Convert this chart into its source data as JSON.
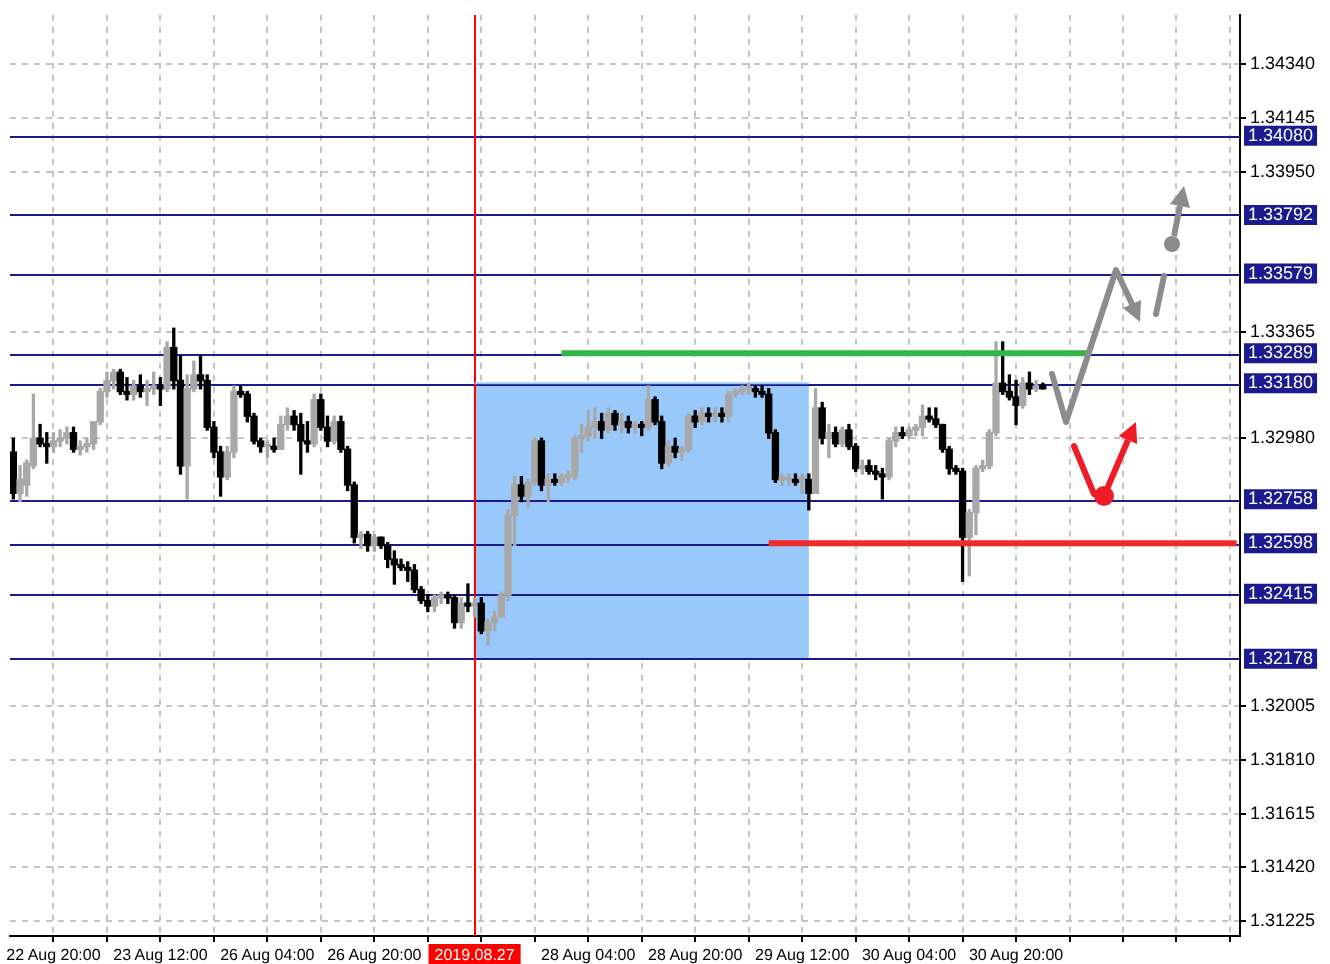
{
  "chart_data": {
    "type": "candlestick",
    "categories": [
      null,
      null,
      null,
      null,
      null,
      null,
      "22 Aug 20:00",
      null,
      null,
      null,
      null,
      null,
      null,
      null,
      null,
      null,
      null,
      null,
      null,
      null,
      null,
      null,
      "23 Aug 12:00",
      null,
      null,
      null,
      null,
      null,
      null,
      null,
      null,
      null,
      null,
      null,
      null,
      null,
      null,
      null,
      "26 Aug 04:00",
      null,
      null,
      null,
      null,
      null,
      null,
      null,
      null,
      null,
      null,
      null,
      null,
      null,
      null,
      null,
      "26 Aug 20:00",
      null,
      null,
      null,
      null,
      null,
      null,
      null,
      null,
      null,
      null,
      null,
      null,
      null,
      null,
      "2019.08.27",
      null,
      null,
      null,
      null,
      null,
      null,
      null,
      null,
      null,
      null,
      null,
      null,
      null,
      null,
      null,
      null,
      "28 Aug 04:00",
      null,
      null,
      null,
      null,
      null,
      null,
      null,
      null,
      null,
      null,
      null,
      null,
      null,
      null,
      null,
      "28 Aug 20:00",
      null,
      null,
      null,
      null,
      null,
      null,
      null,
      null,
      null,
      null,
      null,
      null,
      null,
      null,
      null,
      "29 Aug 12:00",
      null,
      null,
      null,
      null,
      null,
      null,
      null,
      null,
      null,
      null,
      null,
      null,
      null,
      null,
      null,
      "30 Aug 04:00",
      null,
      null,
      null,
      null,
      null,
      null,
      null,
      null,
      null,
      null,
      null,
      null,
      null,
      null,
      null,
      "30 Aug 20:00",
      null,
      null,
      null,
      null,
      null,
      null,
      null,
      null,
      null,
      null,
      null,
      null,
      null,
      null,
      null,
      null,
      null,
      null,
      null,
      null,
      null,
      null,
      null,
      null,
      null,
      null,
      null,
      null,
      null,
      null,
      null,
      null,
      null
    ],
    "ohlc": [
      [
        1.3293,
        1.3298,
        1.3276,
        1.3278
      ],
      [
        1.3278,
        1.3288,
        1.3275,
        1.3283
      ],
      [
        1.3281,
        1.329,
        1.3277,
        1.3289
      ],
      [
        1.3288,
        1.3314,
        1.3287,
        1.3298
      ],
      [
        1.3298,
        1.3303,
        1.3295,
        1.3296
      ],
      [
        1.3296,
        1.33,
        1.3289,
        1.3295
      ],
      [
        1.3295,
        1.33,
        1.3293,
        1.3297
      ],
      [
        1.3297,
        1.3301,
        1.3295,
        1.3298
      ],
      [
        1.3298,
        1.3302,
        1.3296,
        1.33
      ],
      [
        1.33,
        1.3302,
        1.3293,
        1.3294
      ],
      [
        1.3294,
        1.3297,
        1.3292,
        1.3295
      ],
      [
        1.3295,
        1.3298,
        1.3293,
        1.3296
      ],
      [
        1.3296,
        1.3304,
        1.3294,
        1.3304
      ],
      [
        1.3304,
        1.3316,
        1.3303,
        1.3315
      ],
      [
        1.3315,
        1.3322,
        1.3313,
        1.3319
      ],
      [
        1.3319,
        1.3323,
        1.3316,
        1.3322
      ],
      [
        1.3322,
        1.3323,
        1.3314,
        1.3315
      ],
      [
        1.3315,
        1.332,
        1.3312,
        1.3314
      ],
      [
        1.3314,
        1.3319,
        1.3312,
        1.3317
      ],
      [
        1.3317,
        1.3321,
        1.3313,
        1.3315
      ],
      [
        1.3315,
        1.3319,
        1.331,
        1.3316
      ],
      [
        1.3316,
        1.3322,
        1.3314,
        1.3317
      ],
      [
        1.3317,
        1.332,
        1.331,
        1.3316
      ],
      [
        1.3316,
        1.3333,
        1.3315,
        1.3331
      ],
      [
        1.3331,
        1.3338,
        1.3316,
        1.3319
      ],
      [
        1.3319,
        1.3328,
        1.3285,
        1.3288
      ],
      [
        1.3288,
        1.3321,
        1.3276,
        1.3316
      ],
      [
        1.3316,
        1.3326,
        1.3315,
        1.3321
      ],
      [
        1.3321,
        1.3328,
        1.3316,
        1.3319
      ],
      [
        1.3319,
        1.3321,
        1.3301,
        1.3302
      ],
      [
        1.3302,
        1.3304,
        1.3291,
        1.3293
      ],
      [
        1.3293,
        1.3295,
        1.3277,
        1.3284
      ],
      [
        1.3284,
        1.3295,
        1.3283,
        1.3293
      ],
      [
        1.3293,
        1.3317,
        1.3291,
        1.3315
      ],
      [
        1.3315,
        1.3317,
        1.3313,
        1.3314
      ],
      [
        1.3314,
        1.3315,
        1.3304,
        1.3306
      ],
      [
        1.3306,
        1.3307,
        1.3296,
        1.3297
      ],
      [
        1.3297,
        1.3298,
        1.3293,
        1.3295
      ],
      [
        1.3295,
        1.3297,
        1.3291,
        1.3295
      ],
      [
        1.3295,
        1.3298,
        1.3293,
        1.3294
      ],
      [
        1.3294,
        1.3306,
        1.3294,
        1.3303
      ],
      [
        1.3303,
        1.3309,
        1.3301,
        1.3306
      ],
      [
        1.3306,
        1.3308,
        1.3301,
        1.3303
      ],
      [
        1.3303,
        1.3307,
        1.3285,
        1.3297
      ],
      [
        1.3297,
        1.3304,
        1.3293,
        1.3296
      ],
      [
        1.3296,
        1.3314,
        1.3295,
        1.3312
      ],
      [
        1.3312,
        1.3314,
        1.3301,
        1.3302
      ],
      [
        1.3302,
        1.3306,
        1.3295,
        1.3297
      ],
      [
        1.3297,
        1.3306,
        1.3296,
        1.3304
      ],
      [
        1.3304,
        1.3306,
        1.3293,
        1.3294
      ],
      [
        1.3294,
        1.3295,
        1.3279,
        1.3281
      ],
      [
        1.3281,
        1.3282,
        1.326,
        1.3262
      ],
      [
        1.3262,
        1.3264,
        1.3258,
        1.3263
      ],
      [
        1.3263,
        1.3264,
        1.3257,
        1.3259
      ],
      [
        1.3259,
        1.3263,
        1.3257,
        1.3262
      ],
      [
        1.3262,
        1.3262,
        1.3258,
        1.3259
      ],
      [
        1.3259,
        1.326,
        1.3251,
        1.3254
      ],
      [
        1.3254,
        1.3257,
        1.3245,
        1.3252
      ],
      [
        1.3252,
        1.3254,
        1.325,
        1.3251
      ],
      [
        1.3251,
        1.3253,
        1.3246,
        1.325
      ],
      [
        1.325,
        1.3252,
        1.3242,
        1.3243
      ],
      [
        1.3243,
        1.3244,
        1.3238,
        1.3239
      ],
      [
        1.3239,
        1.3241,
        1.3235,
        1.3237
      ],
      [
        1.3237,
        1.3241,
        1.3235,
        1.324
      ],
      [
        1.324,
        1.3242,
        1.3238,
        1.3241
      ],
      [
        1.3241,
        1.3242,
        1.3238,
        1.324
      ],
      [
        1.324,
        1.3241,
        1.3229,
        1.3231
      ],
      [
        1.3231,
        1.324,
        1.3229,
        1.3238
      ],
      [
        1.3238,
        1.3245,
        1.3235,
        1.3237
      ],
      [
        1.3237,
        1.324,
        1.3233,
        1.3238
      ],
      [
        1.3238,
        1.324,
        1.3227,
        1.3228
      ],
      [
        1.3228,
        1.3232,
        1.3223,
        1.3231
      ],
      [
        1.3231,
        1.3235,
        1.3228,
        1.3233
      ],
      [
        1.3233,
        1.3242,
        1.3233,
        1.3241
      ],
      [
        1.3241,
        1.3272,
        1.3239,
        1.327
      ],
      [
        1.327,
        1.3284,
        1.3259,
        1.3281
      ],
      [
        1.3281,
        1.3284,
        1.3275,
        1.3277
      ],
      [
        1.3277,
        1.3283,
        1.3273,
        1.3282
      ],
      [
        1.3282,
        1.3298,
        1.3281,
        1.3297
      ],
      [
        1.3297,
        1.3298,
        1.3279,
        1.3281
      ],
      [
        1.3281,
        1.3285,
        1.3275,
        1.3283
      ],
      [
        1.3283,
        1.3285,
        1.3281,
        1.3282
      ],
      [
        1.3282,
        1.3285,
        1.3281,
        1.3284
      ],
      [
        1.3284,
        1.3286,
        1.3282,
        1.3284
      ],
      [
        1.3284,
        1.3299,
        1.3283,
        1.3298
      ],
      [
        1.3298,
        1.3303,
        1.3293,
        1.3299
      ],
      [
        1.3299,
        1.3308,
        1.3297,
        1.3302
      ],
      [
        1.3302,
        1.3309,
        1.3298,
        1.3304
      ],
      [
        1.3304,
        1.3307,
        1.3298,
        1.3301
      ],
      [
        1.3301,
        1.3309,
        1.33,
        1.3307
      ],
      [
        1.3307,
        1.3308,
        1.3301,
        1.3303
      ],
      [
        1.3303,
        1.3307,
        1.33,
        1.3304
      ],
      [
        1.3304,
        1.3306,
        1.33,
        1.3302
      ],
      [
        1.3302,
        1.3304,
        1.33,
        1.3303
      ],
      [
        1.3303,
        1.3304,
        1.3299,
        1.3302
      ],
      [
        1.3302,
        1.3317,
        1.3301,
        1.3312
      ],
      [
        1.3312,
        1.3313,
        1.3303,
        1.3304
      ],
      [
        1.3304,
        1.3306,
        1.3287,
        1.3289
      ],
      [
        1.3289,
        1.3297,
        1.3288,
        1.3295
      ],
      [
        1.3295,
        1.3298,
        1.3291,
        1.3293
      ],
      [
        1.3293,
        1.3295,
        1.329,
        1.3294
      ],
      [
        1.3294,
        1.3307,
        1.3293,
        1.3306
      ],
      [
        1.3306,
        1.3308,
        1.3302,
        1.3304
      ],
      [
        1.3304,
        1.3309,
        1.3303,
        1.3307
      ],
      [
        1.3307,
        1.3309,
        1.3304,
        1.3306
      ],
      [
        1.3306,
        1.3309,
        1.3304,
        1.3307
      ],
      [
        1.3307,
        1.3309,
        1.3304,
        1.3306
      ],
      [
        1.3306,
        1.3315,
        1.3304,
        1.3314
      ],
      [
        1.3314,
        1.3316,
        1.3313,
        1.3315
      ],
      [
        1.3315,
        1.3317,
        1.3314,
        1.3316
      ],
      [
        1.3316,
        1.3318,
        1.3314,
        1.3316
      ],
      [
        1.3316,
        1.3317,
        1.3313,
        1.3315
      ],
      [
        1.3315,
        1.3317,
        1.3313,
        1.3314
      ],
      [
        1.3314,
        1.3316,
        1.3298,
        1.33
      ],
      [
        1.33,
        1.3301,
        1.3282,
        1.3283
      ],
      [
        1.3283,
        1.3285,
        1.3281,
        1.3283
      ],
      [
        1.3283,
        1.3285,
        1.3281,
        1.3283
      ],
      [
        1.3283,
        1.3285,
        1.3281,
        1.3282
      ],
      [
        1.3283,
        1.3285,
        1.3278,
        1.3283
      ],
      [
        1.3283,
        1.3285,
        1.3272,
        1.3278
      ],
      [
        1.3278,
        1.3316,
        1.3278,
        1.3309
      ],
      [
        1.3309,
        1.3311,
        1.3296,
        1.3298
      ],
      [
        1.3298,
        1.3303,
        1.3291,
        1.33
      ],
      [
        1.33,
        1.3302,
        1.3295,
        1.3296
      ],
      [
        1.3296,
        1.3302,
        1.3295,
        1.3301
      ],
      [
        1.3301,
        1.3303,
        1.3294,
        1.3295
      ],
      [
        1.3295,
        1.3296,
        1.3286,
        1.3287
      ],
      [
        1.3287,
        1.329,
        1.3285,
        1.3288
      ],
      [
        1.3288,
        1.329,
        1.3285,
        1.3286
      ],
      [
        1.3286,
        1.3288,
        1.3283,
        1.3285
      ],
      [
        1.3285,
        1.3287,
        1.3276,
        1.3284
      ],
      [
        1.3284,
        1.3298,
        1.3283,
        1.3297
      ],
      [
        1.3297,
        1.3302,
        1.3295,
        1.33
      ],
      [
        1.33,
        1.3302,
        1.3298,
        1.3299
      ],
      [
        1.3299,
        1.3302,
        1.3298,
        1.3301
      ],
      [
        1.3301,
        1.3303,
        1.3299,
        1.3302
      ],
      [
        1.3302,
        1.331,
        1.3299,
        1.3306
      ],
      [
        1.3306,
        1.3309,
        1.3304,
        1.3305
      ],
      [
        1.3305,
        1.3309,
        1.3302,
        1.3303
      ],
      [
        1.3303,
        1.3303,
        1.3293,
        1.3294
      ],
      [
        1.3294,
        1.3295,
        1.3285,
        1.3287
      ],
      [
        1.3287,
        1.3288,
        1.3285,
        1.3286
      ],
      [
        1.3286,
        1.3287,
        1.3246,
        1.3262
      ],
      [
        1.3262,
        1.3272,
        1.3248,
        1.3271
      ],
      [
        1.3271,
        1.3288,
        1.3263,
        1.3287
      ],
      [
        1.3287,
        1.329,
        1.3286,
        1.3288
      ],
      [
        1.3288,
        1.3301,
        1.3287,
        1.33
      ],
      [
        1.33,
        1.3333,
        1.3299,
        1.3318
      ],
      [
        1.3318,
        1.3333,
        1.3314,
        1.3315
      ],
      [
        1.3315,
        1.3321,
        1.3312,
        1.3313
      ],
      [
        1.3313,
        1.3319,
        1.3303,
        1.331
      ],
      [
        1.331,
        1.332,
        1.3309,
        1.3318
      ],
      [
        1.3318,
        1.3322,
        1.3314,
        1.3316
      ],
      [
        1.3316,
        1.3319,
        1.3315,
        1.3317
      ],
      [
        1.3317,
        1.3318,
        1.3316,
        1.3316
      ],
      null,
      null,
      null,
      null,
      null,
      null,
      null,
      null,
      null,
      null,
      null,
      null,
      null,
      null,
      null,
      null,
      null,
      null,
      null,
      null,
      null,
      null,
      null,
      null,
      null,
      null,
      null,
      null,
      null
    ],
    "ylim": [
      1.3117,
      1.3452
    ],
    "yticks": [
      {
        "value": 1.3434,
        "label": "1.34340"
      },
      {
        "value": 1.34145,
        "label": "1.34145"
      },
      {
        "value": 1.3395,
        "label": "1.33950"
      },
      {
        "value": 1.33365,
        "label": "1.33365"
      },
      {
        "value": 1.3298,
        "label": "1.32980"
      },
      {
        "value": 1.32005,
        "label": "1.32005"
      },
      {
        "value": 1.3181,
        "label": "1.31810"
      },
      {
        "value": 1.31615,
        "label": "1.31615"
      },
      {
        "value": 1.3142,
        "label": "1.31420"
      },
      {
        "value": 1.31225,
        "label": "1.31225"
      }
    ],
    "grid": true,
    "series": [
      {
        "type": "line",
        "color": "#99c9fb",
        "upper": [
          null,
          null,
          null,
          null,
          null,
          null,
          null,
          null,
          null,
          null,
          null,
          null,
          null,
          null,
          null,
          null,
          null,
          null,
          null,
          null,
          null,
          null,
          null,
          null,
          null,
          null,
          null,
          null,
          null,
          null,
          null,
          null,
          null,
          null,
          null,
          null,
          null,
          null,
          null,
          null,
          null,
          null,
          null,
          null,
          null,
          null,
          null,
          null,
          null,
          null,
          null,
          null,
          null,
          null,
          null,
          null,
          null,
          null,
          null,
          null,
          null,
          null,
          null,
          null,
          null,
          null,
          null,
          null,
          null,
          1.3318,
          1.3318,
          1.3318,
          1.3318,
          1.3318,
          1.3318,
          1.3318,
          1.3318,
          1.3318,
          1.3318,
          1.3318,
          1.3318,
          1.3318,
          1.3318,
          1.3318,
          1.3318,
          1.3318,
          1.3318,
          1.3318,
          1.3318,
          1.3318,
          1.3318,
          1.3318,
          1.3318,
          1.3318,
          1.3318,
          1.3318,
          1.3318,
          1.3318,
          1.3318,
          1.3318,
          1.3318,
          1.3318,
          1.3318,
          1.3318,
          1.3318,
          1.3318,
          1.3318,
          1.3318,
          1.3318,
          1.3318,
          1.3318,
          1.3318,
          1.3318,
          1.3318,
          1.3318,
          1.3318,
          1.3318,
          1.3318,
          1.3318,
          1.3318,
          null,
          null,
          null,
          null,
          null,
          null,
          null,
          null,
          null,
          null,
          null,
          null,
          null,
          null,
          null,
          null,
          null,
          null,
          null,
          null,
          null,
          null,
          null,
          null,
          null,
          null,
          null,
          null,
          null,
          null,
          null,
          null,
          null,
          null,
          null,
          null,
          null,
          null,
          null,
          null,
          null,
          null,
          null,
          null,
          null,
          null,
          null,
          null,
          null,
          null,
          null,
          null,
          null,
          null,
          null,
          null,
          null,
          null,
          null,
          null,
          null,
          null,
          null,
          null
        ],
        "values": [
          null,
          null,
          null,
          null,
          null,
          null,
          null,
          null,
          null,
          null,
          null,
          null,
          null,
          null,
          null,
          null,
          null,
          null,
          null,
          null,
          null,
          null,
          null,
          null,
          null,
          null,
          null,
          null,
          null,
          null,
          null,
          null,
          null,
          null,
          null,
          null,
          null,
          null,
          null,
          null,
          null,
          null,
          null,
          null,
          null,
          null,
          null,
          null,
          null,
          null,
          null,
          null,
          null,
          null,
          null,
          null,
          null,
          null,
          null,
          null,
          null,
          null,
          null,
          null,
          null,
          null,
          null,
          null,
          null,
          1.3318,
          1.3318,
          1.3318,
          1.3318,
          1.3318,
          1.3318,
          1.3318,
          1.3318,
          1.3318,
          1.3318,
          1.3318,
          1.3318,
          1.3318,
          1.3318,
          1.3318,
          1.3318,
          1.3318,
          1.3318,
          1.3318,
          1.3318,
          1.3318,
          1.3318,
          1.3318,
          1.3318,
          1.3318,
          1.3318,
          1.3318,
          1.3318,
          1.3318,
          1.3318,
          1.3318,
          1.3318,
          1.3318,
          1.3318,
          1.3318,
          1.3318,
          1.3318,
          1.3318,
          1.3318,
          1.3318,
          1.3318,
          1.3318,
          1.3318,
          1.3318,
          1.3318,
          1.3318,
          1.3318,
          1.3318,
          1.3318,
          1.3318,
          1.3318,
          null,
          null,
          null,
          null,
          null,
          null,
          null,
          null,
          null,
          null,
          null,
          null,
          null,
          null,
          null,
          null,
          null,
          null,
          null,
          null,
          null,
          null,
          null,
          null,
          null,
          null,
          null,
          null,
          null,
          null,
          null,
          null,
          null,
          null,
          null,
          null,
          null,
          null,
          null,
          null,
          null,
          null,
          null,
          null,
          null,
          null,
          null,
          null,
          null,
          null,
          null,
          null,
          null,
          null,
          null,
          null,
          null,
          null,
          null,
          null,
          null,
          null,
          null,
          null
        ],
        "lower": [
          null,
          null,
          null,
          null,
          null,
          null,
          null,
          null,
          null,
          null,
          null,
          null,
          null,
          null,
          null,
          null,
          null,
          null,
          null,
          null,
          null,
          null,
          null,
          null,
          null,
          null,
          null,
          null,
          null,
          null,
          null,
          null,
          null,
          null,
          null,
          null,
          null,
          null,
          null,
          null,
          null,
          null,
          null,
          null,
          null,
          null,
          null,
          null,
          null,
          null,
          null,
          null,
          null,
          null,
          null,
          null,
          null,
          null,
          null,
          null,
          null,
          null,
          null,
          null,
          null,
          null,
          null,
          null,
          null,
          1.32178,
          1.32178,
          1.32178,
          1.32178,
          1.32178,
          1.32178,
          1.32178,
          1.32178,
          1.32178,
          1.32178,
          1.32178,
          1.32178,
          1.32178,
          1.32178,
          1.32178,
          1.32178,
          1.32178,
          1.32178,
          1.32178,
          1.32178,
          1.32178,
          1.32178,
          1.32178,
          1.32178,
          1.32178,
          1.32178,
          1.32178,
          1.32178,
          1.32178,
          1.32178,
          1.32178,
          1.32178,
          1.32178,
          1.32178,
          1.32178,
          1.32178,
          1.32178,
          1.32178,
          1.32178,
          1.32178,
          1.32178,
          1.32178,
          1.32178,
          1.32178,
          1.32178,
          1.32178,
          1.32178,
          1.32178,
          1.32178,
          1.32178,
          1.32178,
          null,
          null,
          null,
          null,
          null,
          null,
          null,
          null,
          null,
          null,
          null,
          null,
          null,
          null,
          null,
          null,
          null,
          null,
          null,
          null,
          null,
          null,
          null,
          null,
          null,
          null,
          null,
          null,
          null,
          null,
          null,
          null,
          null,
          null,
          null,
          null,
          null,
          null,
          null,
          null,
          null,
          null,
          null,
          null,
          null,
          null,
          null,
          null,
          null,
          null,
          null,
          null,
          null,
          null,
          null,
          null,
          null,
          null,
          null,
          null,
          null,
          null,
          null,
          null
        ]
      },
      {
        "type": "line",
        "color": "#33b54a",
        "values": [
          null,
          null,
          null,
          null,
          null,
          null,
          null,
          null,
          null,
          null,
          null,
          null,
          null,
          null,
          null,
          null,
          null,
          null,
          null,
          null,
          null,
          null,
          null,
          null,
          null,
          null,
          null,
          null,
          null,
          null,
          null,
          null,
          null,
          null,
          null,
          null,
          null,
          null,
          null,
          null,
          null,
          null,
          null,
          null,
          null,
          null,
          null,
          null,
          null,
          null,
          null,
          null,
          null,
          null,
          null,
          null,
          null,
          null,
          null,
          null,
          null,
          null,
          null,
          null,
          null,
          null,
          null,
          null,
          null,
          null,
          null,
          null,
          null,
          null,
          null,
          null,
          null,
          null,
          null,
          null,
          null,
          null,
          1.33289,
          1.33289,
          1.33289,
          1.33289,
          1.33289,
          1.33289,
          1.33289,
          1.33289,
          1.33289,
          1.33289,
          1.33289,
          1.33289,
          1.33289,
          1.33289,
          1.33289,
          1.33289,
          1.33289,
          1.33289,
          1.33289,
          1.33289,
          1.33289,
          1.33289,
          1.33289,
          1.33289,
          1.33289,
          1.33289,
          1.33289,
          1.33289,
          1.33289,
          1.33289,
          1.33289,
          1.33289,
          1.33289,
          1.33289,
          1.33289,
          1.33289,
          1.33289,
          1.33289,
          1.33289,
          1.33289,
          1.33289,
          1.33289,
          1.33289,
          1.33289,
          1.33289,
          1.33289,
          1.33289,
          1.33289,
          1.33289,
          1.33289,
          1.33289,
          1.33289,
          1.33289,
          1.33289,
          1.33289,
          1.33289,
          1.33289,
          1.33289,
          1.33289,
          1.33289,
          1.33289,
          1.33289,
          1.33289,
          1.33289,
          1.33289,
          1.33289,
          1.33289,
          1.33289,
          1.33289,
          1.33289,
          1.33289,
          1.33289,
          1.33289,
          1.33289,
          1.33289,
          1.33289,
          1.33289,
          1.33289,
          1.33289,
          1.33289,
          null,
          null,
          null,
          null,
          null,
          null,
          null,
          null,
          null,
          null,
          null,
          null,
          null,
          null,
          null,
          null,
          null,
          null,
          null,
          null,
          null,
          null
        ]
      },
      {
        "type": "line",
        "color": "#ee2a2a",
        "values": [
          null,
          null,
          null,
          null,
          null,
          null,
          null,
          null,
          null,
          null,
          null,
          null,
          null,
          null,
          null,
          null,
          null,
          null,
          null,
          null,
          null,
          null,
          null,
          null,
          null,
          null,
          null,
          null,
          null,
          null,
          null,
          null,
          null,
          null,
          null,
          null,
          null,
          null,
          null,
          null,
          null,
          null,
          null,
          null,
          null,
          null,
          null,
          null,
          null,
          null,
          null,
          null,
          null,
          null,
          null,
          null,
          null,
          null,
          null,
          null,
          null,
          null,
          null,
          null,
          null,
          null,
          null,
          null,
          null,
          null,
          null,
          null,
          null,
          null,
          null,
          null,
          null,
          null,
          null,
          null,
          null,
          null,
          null,
          null,
          null,
          null,
          null,
          null,
          null,
          null,
          null,
          null,
          null,
          null,
          null,
          null,
          null,
          null,
          null,
          null,
          null,
          null,
          null,
          null,
          null,
          null,
          null,
          null,
          null,
          null,
          null,
          null,
          null,
          1.32598,
          1.32598,
          1.32598,
          1.32598,
          1.32598,
          1.32598,
          1.32598,
          1.32598,
          1.32598,
          1.32598,
          1.32598,
          1.32598,
          1.32598,
          1.32598,
          1.32598,
          1.32598,
          1.32598,
          1.32598,
          1.32598,
          1.32598,
          1.32598,
          1.32598,
          1.32598,
          1.32598,
          1.32598,
          1.32598,
          1.32598,
          1.32598,
          1.32598,
          1.32598,
          1.32598,
          1.32598,
          1.32598,
          1.32598,
          1.32598,
          1.32598,
          1.32598,
          1.32598,
          1.32598,
          1.32598,
          1.32598,
          1.32598,
          1.32598,
          1.32598,
          1.32598,
          1.32598,
          1.32598,
          1.32598,
          1.32598,
          1.32598,
          1.32598,
          1.32598,
          1.32598,
          1.32598,
          1.32598,
          1.32598,
          1.32598,
          1.32598,
          1.32598,
          1.32598,
          1.32598,
          1.32598,
          1.32598,
          1.32598,
          1.32598,
          1.32598,
          1.32598,
          1.32598,
          1.32598,
          1.32598,
          1.32598
        ]
      }
    ],
    "ref_lines": [
      {
        "axis": "y",
        "value": 1.3408,
        "label": "1.34080",
        "color": "#1b1b8f"
      },
      {
        "axis": "y",
        "value": 1.33792,
        "label": "1.33792",
        "color": "#1b1b8f"
      },
      {
        "axis": "y",
        "value": 1.33579,
        "label": "1.33579",
        "color": "#1b1b8f"
      },
      {
        "axis": "y",
        "value": 1.33289,
        "label": "1.33289",
        "color": "#1b1b8f"
      },
      {
        "axis": "y",
        "value": 1.3318,
        "label": "1.33180",
        "color": "#1b1b8f"
      },
      {
        "axis": "y",
        "value": 1.32758,
        "label": "1.32758",
        "color": "#1b1b8f"
      },
      {
        "axis": "y",
        "value": 1.32598,
        "label": "1.32598",
        "color": "#1b1b8f"
      },
      {
        "axis": "y",
        "value": 1.32415,
        "label": "1.32415",
        "color": "#1b1b8f"
      },
      {
        "axis": "y",
        "value": 1.32178,
        "label": "1.32178",
        "color": "#1b1b8f"
      },
      {
        "axis": "x",
        "value": "2019.08.27",
        "color": "#ff0000"
      }
    ]
  }
}
